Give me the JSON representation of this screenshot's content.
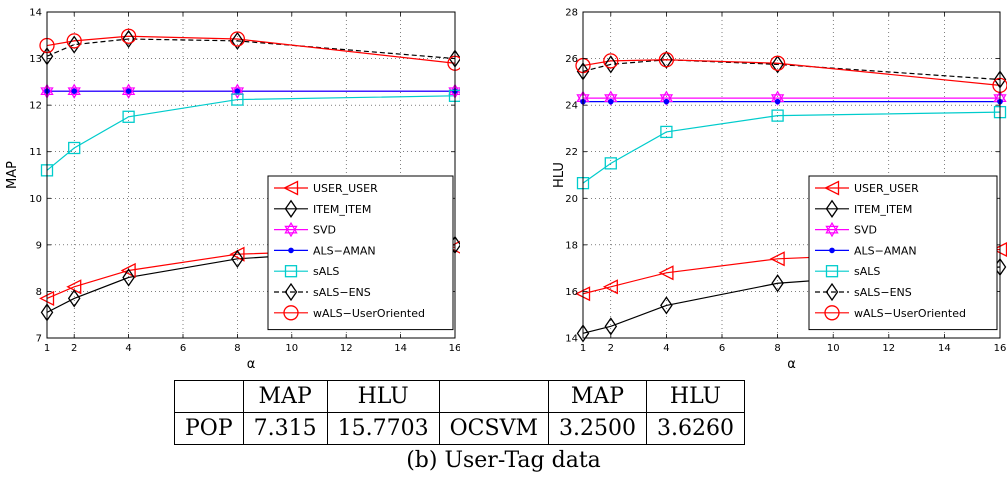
{
  "chart_data": [
    {
      "type": "line",
      "xlabel": "α",
      "ylabel": "MAP",
      "xlim": [
        1,
        16
      ],
      "ylim": [
        7,
        14
      ],
      "xticks": [
        1,
        2,
        4,
        6,
        8,
        10,
        12,
        14,
        16
      ],
      "yticks": [
        7,
        8,
        9,
        10,
        11,
        12,
        13,
        14
      ],
      "x": [
        1,
        2,
        4,
        8,
        16
      ],
      "legend_position": "bottom-right",
      "grid": true,
      "series": [
        {
          "name": "USER_USER",
          "values": [
            7.85,
            8.1,
            8.45,
            8.8,
            8.95
          ],
          "color": "#ff0000",
          "marker": "triangle-left",
          "dash": "solid"
        },
        {
          "name": "ITEM_ITEM",
          "values": [
            7.55,
            7.85,
            8.3,
            8.7,
            9.0
          ],
          "color": "#000000",
          "marker": "diamond",
          "dash": "solid"
        },
        {
          "name": "SVD",
          "values": [
            12.3,
            12.3,
            12.3,
            12.3,
            12.3
          ],
          "color": "#ff00ff",
          "marker": "hexagram",
          "dash": "solid"
        },
        {
          "name": "ALS−AMAN",
          "values": [
            12.3,
            12.3,
            12.3,
            12.3,
            12.3
          ],
          "color": "#0000ff",
          "marker": "dot",
          "dash": "solid"
        },
        {
          "name": "sALS",
          "values": [
            10.6,
            11.08,
            11.75,
            12.12,
            12.2
          ],
          "color": "#00cccc",
          "marker": "square",
          "dash": "solid"
        },
        {
          "name": "sALS−ENS",
          "values": [
            13.05,
            13.3,
            13.42,
            13.38,
            13.0
          ],
          "color": "#000000",
          "marker": "diamond",
          "dash": "dashed"
        },
        {
          "name": "wALS−UserOriented",
          "values": [
            13.28,
            13.38,
            13.48,
            13.42,
            12.9
          ],
          "color": "#ff0000",
          "marker": "circle",
          "dash": "solid"
        }
      ]
    },
    {
      "type": "line",
      "xlabel": "α",
      "ylabel": "HLU",
      "xlim": [
        1,
        16
      ],
      "ylim": [
        14,
        28
      ],
      "xticks": [
        1,
        2,
        4,
        6,
        8,
        10,
        12,
        14,
        16
      ],
      "yticks": [
        14,
        16,
        18,
        20,
        22,
        24,
        26,
        28
      ],
      "x": [
        1,
        2,
        4,
        8,
        16
      ],
      "legend_position": "bottom-right",
      "grid": true,
      "series": [
        {
          "name": "USER_USER",
          "values": [
            15.9,
            16.2,
            16.8,
            17.4,
            17.8
          ],
          "color": "#ff0000",
          "marker": "triangle-left",
          "dash": "solid"
        },
        {
          "name": "ITEM_ITEM",
          "values": [
            14.2,
            14.5,
            15.4,
            16.35,
            17.05
          ],
          "color": "#000000",
          "marker": "diamond",
          "dash": "solid"
        },
        {
          "name": "SVD",
          "values": [
            24.3,
            24.3,
            24.3,
            24.3,
            24.3
          ],
          "color": "#ff00ff",
          "marker": "hexagram",
          "dash": "solid"
        },
        {
          "name": "ALS−AMAN",
          "values": [
            24.15,
            24.15,
            24.15,
            24.15,
            24.15
          ],
          "color": "#0000ff",
          "marker": "dot",
          "dash": "solid"
        },
        {
          "name": "sALS",
          "values": [
            20.65,
            21.5,
            22.85,
            23.55,
            23.7
          ],
          "color": "#00cccc",
          "marker": "square",
          "dash": "solid"
        },
        {
          "name": "sALS−ENS",
          "values": [
            25.45,
            25.75,
            25.95,
            25.75,
            25.1
          ],
          "color": "#000000",
          "marker": "diamond",
          "dash": "dashed"
        },
        {
          "name": "wALS−UserOriented",
          "values": [
            25.7,
            25.9,
            25.95,
            25.8,
            24.85
          ],
          "color": "#ff0000",
          "marker": "circle",
          "dash": "solid"
        }
      ]
    }
  ],
  "table": {
    "header": [
      "",
      "MAP",
      "HLU",
      "",
      "MAP",
      "HLU"
    ],
    "row": [
      "POP",
      "7.315",
      "15.7703",
      "OCSVM",
      "3.2500",
      "3.6260"
    ]
  },
  "caption": "(b) User-Tag data"
}
